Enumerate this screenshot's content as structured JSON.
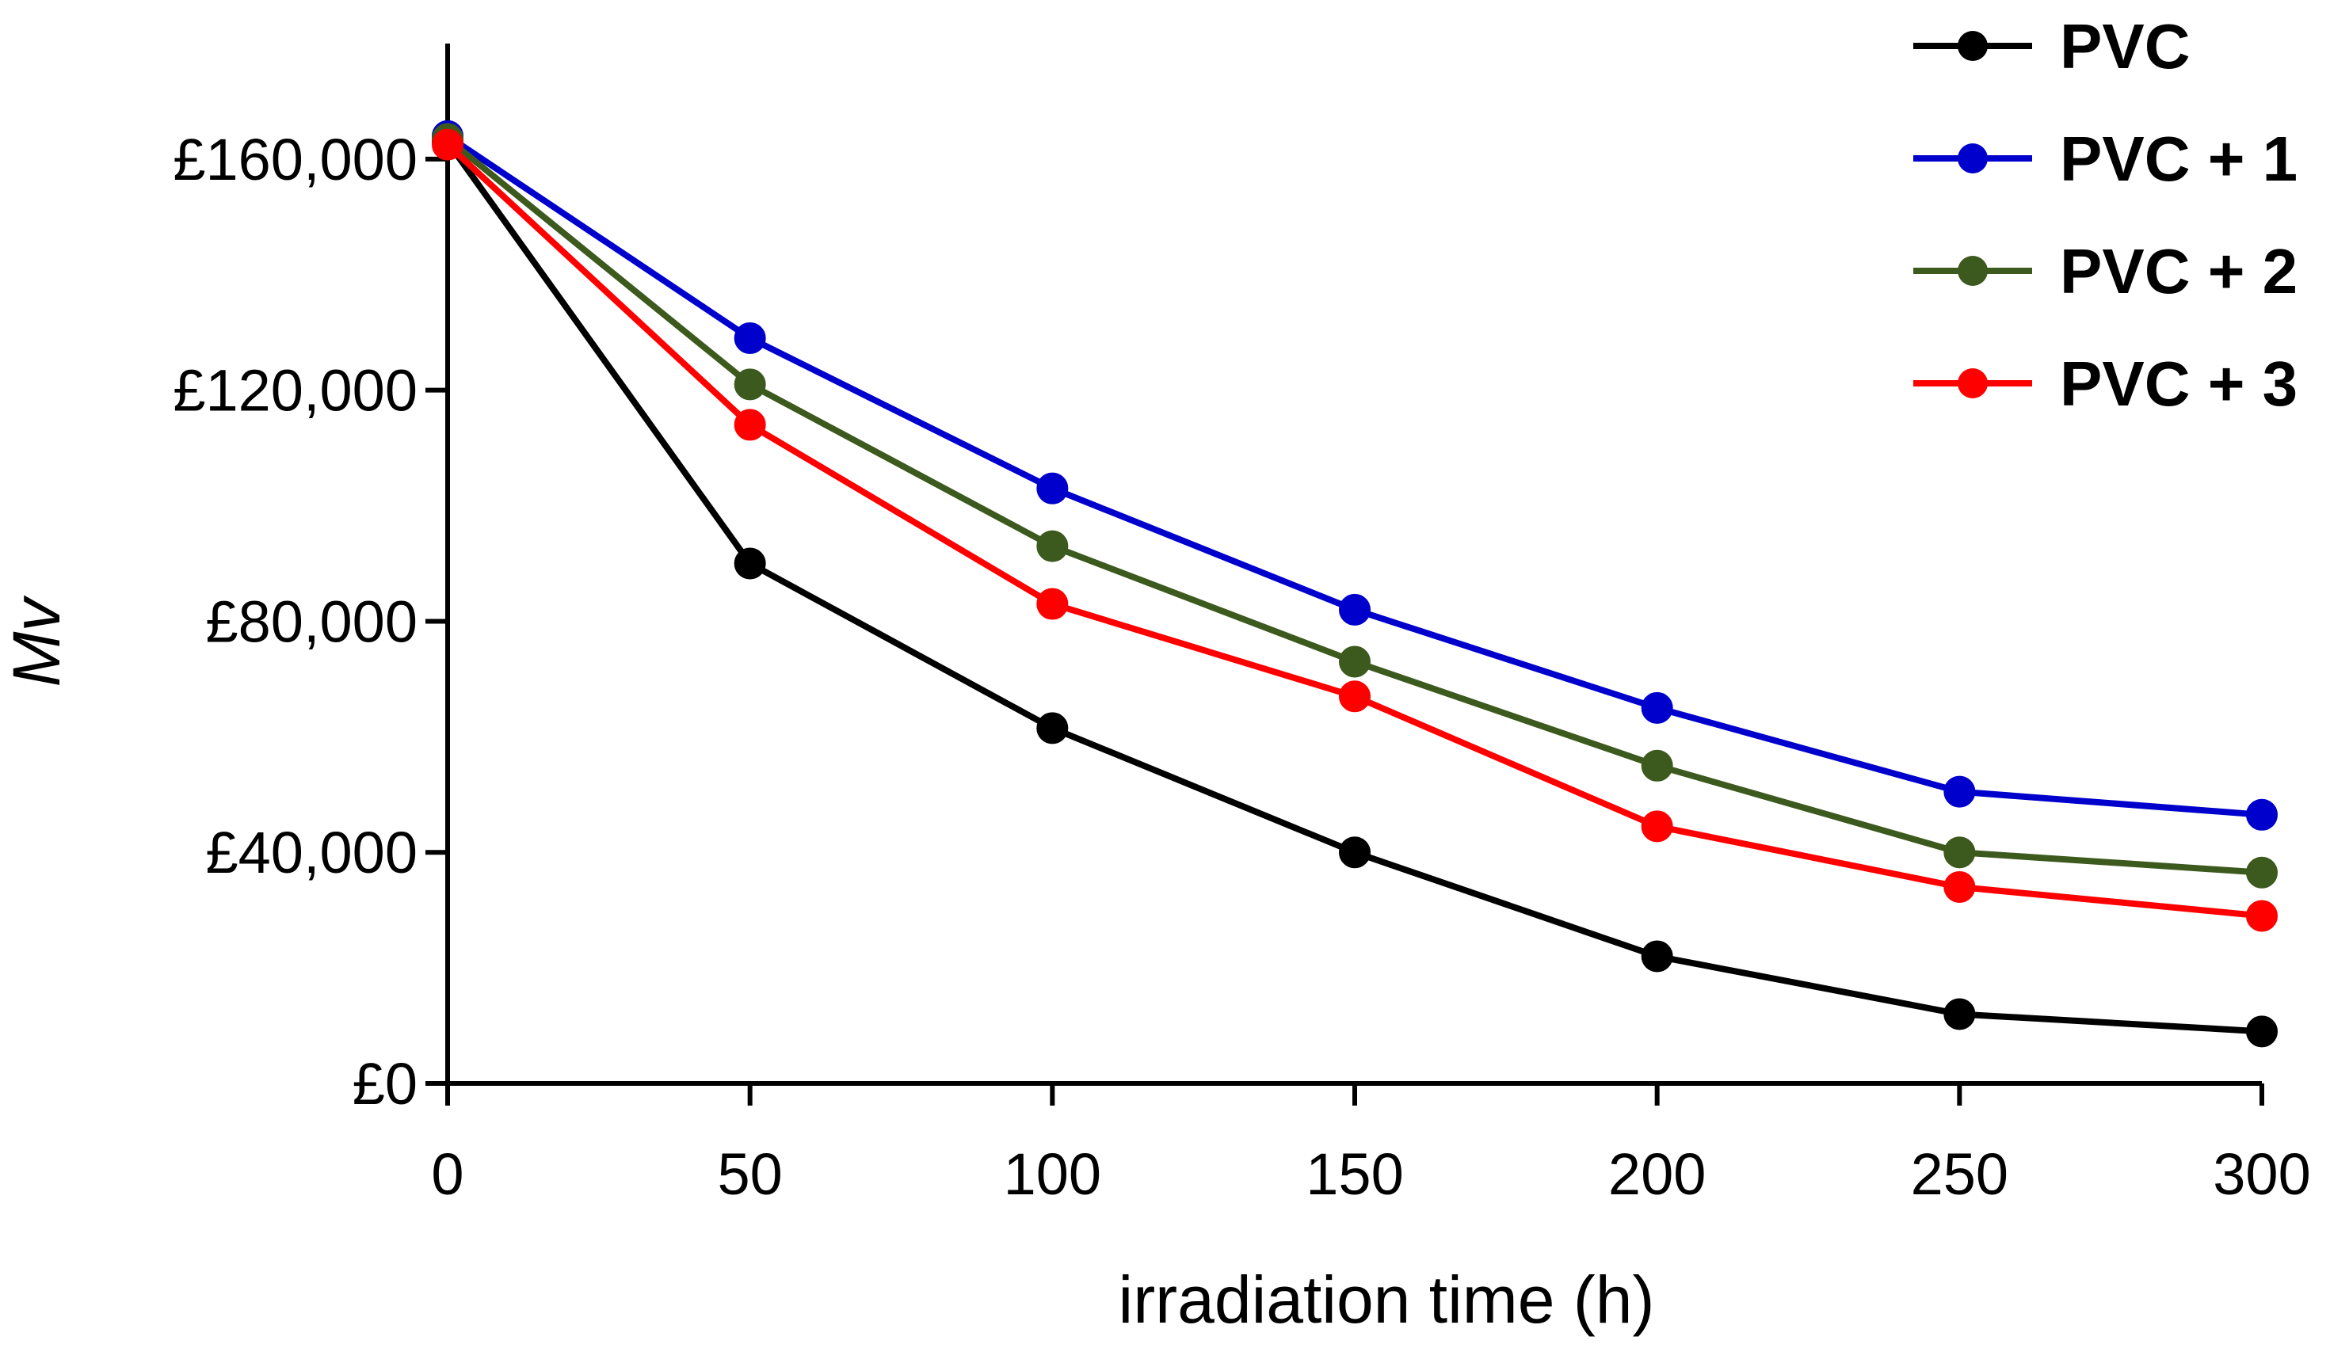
{
  "chart_data": {
    "type": "line",
    "title": "",
    "xlabel": "irradiation time (h)",
    "ylabel": "Mv",
    "x": [
      0,
      50,
      100,
      150,
      200,
      250,
      300
    ],
    "x_ticks": [
      0,
      50,
      100,
      150,
      200,
      250,
      300
    ],
    "x_tick_labels": [
      "0",
      "50",
      "100",
      "150",
      "200",
      "250",
      "300"
    ],
    "y_ticks": [
      0,
      40000,
      80000,
      120000,
      160000
    ],
    "y_tick_labels": [
      "£0",
      "£40,000",
      "£80,000",
      "£120,000",
      "£160,000"
    ],
    "xlim": [
      0,
      300
    ],
    "ylim": [
      0,
      180000
    ],
    "grid": false,
    "legend_position": "top-right",
    "series": [
      {
        "name": "PVC",
        "color": "#000000",
        "values": [
          163000,
          90000,
          61500,
          40000,
          22000,
          12000,
          9000
        ]
      },
      {
        "name": "PVC + 1",
        "color": "#0000cc",
        "values": [
          164000,
          129000,
          103000,
          82000,
          65000,
          50500,
          46500
        ]
      },
      {
        "name": "PVC + 2",
        "color": "#3d5a1e",
        "values": [
          163500,
          121000,
          93000,
          73000,
          55000,
          40000,
          36500
        ]
      },
      {
        "name": "PVC + 3",
        "color": "#ff0000",
        "values": [
          162500,
          114000,
          83000,
          67000,
          44500,
          34000,
          29000
        ]
      }
    ]
  }
}
